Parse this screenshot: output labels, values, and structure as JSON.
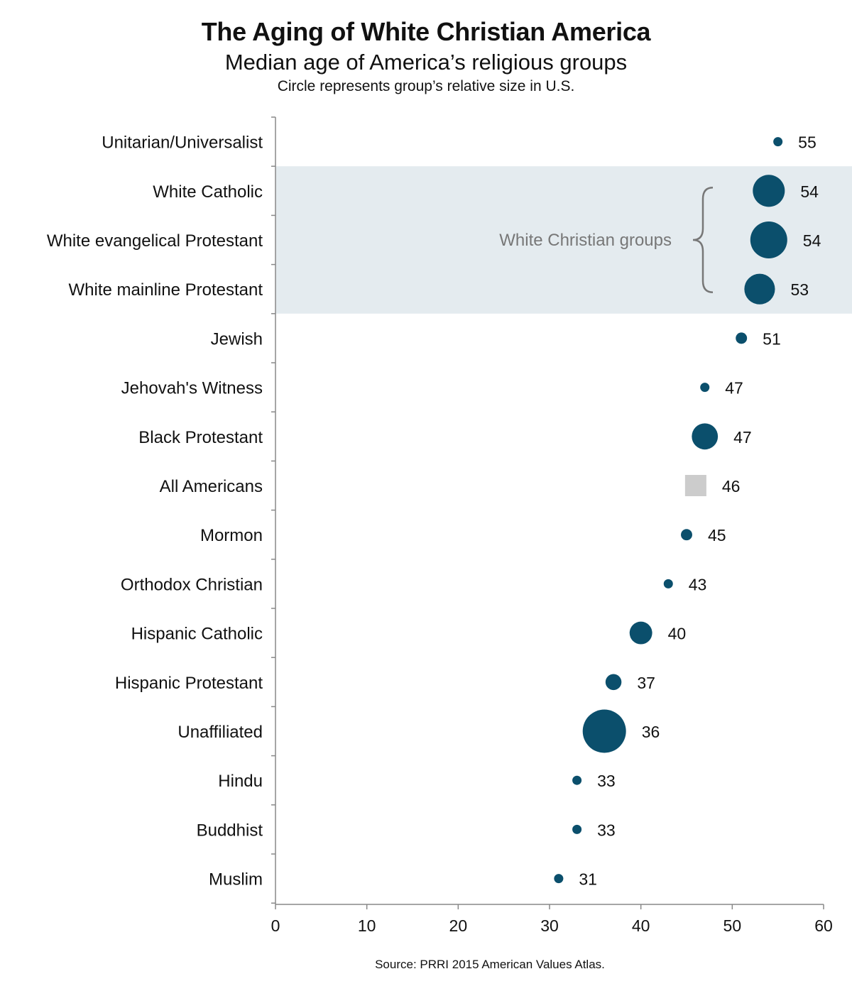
{
  "header": {
    "title": "The Aging of White Christian America",
    "subtitle": "Median age of America’s religious groups",
    "note": "Circle represents group’s relative size in U.S."
  },
  "source": "Source: PRRI 2015 American Values Atlas.",
  "colors": {
    "dot": "#0b4f6c",
    "all_americans": "#cccccc",
    "highlight_band": "#e4ebef",
    "annotation": "#777777",
    "axis": "#888888"
  },
  "chart_data": {
    "type": "scatter",
    "xlim": [
      0,
      60
    ],
    "xticks": [
      "0",
      "10",
      "20",
      "30",
      "40",
      "50",
      "60"
    ],
    "xlabel": "",
    "ylabel": "",
    "grid": false,
    "categories": [
      "Unitarian/Universalist",
      "White Catholic",
      "White evangelical Protestant",
      "White mainline Protestant",
      "Jewish",
      "Jehovah's Witness",
      "Black Protestant",
      "All Americans",
      "Mormon",
      "Orthodox Christian",
      "Hispanic Catholic",
      "Hispanic Protestant",
      "Unaffiliated",
      "Hindu",
      "Buddhist",
      "Muslim"
    ],
    "values": [
      55,
      54,
      54,
      53,
      51,
      47,
      47,
      46,
      45,
      43,
      40,
      37,
      36,
      33,
      33,
      31
    ],
    "labels": [
      "55",
      "54",
      "54",
      "53",
      "51",
      "47",
      "47",
      "46",
      "45",
      "43",
      "40",
      "37",
      "36",
      "33",
      "33",
      "31"
    ],
    "relative_size": [
      1,
      12,
      16,
      11,
      1.5,
      1,
      8,
      null,
      1.5,
      1,
      6,
      3,
      22,
      1,
      1,
      1
    ],
    "highlight": {
      "categories": [
        "White Catholic",
        "White evangelical Protestant",
        "White mainline Protestant"
      ],
      "label": "White Christian groups"
    },
    "reference_category": "All Americans"
  }
}
